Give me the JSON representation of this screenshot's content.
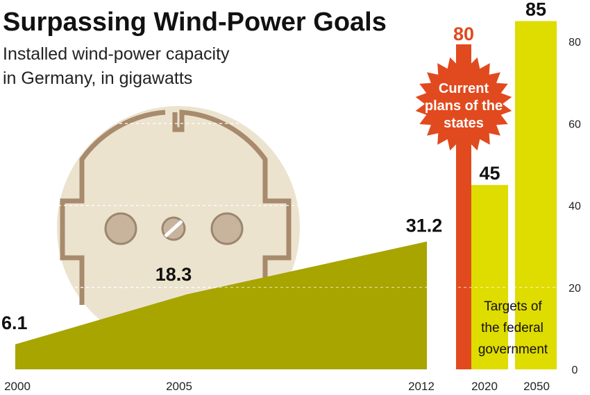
{
  "title": "Surpassing Wind-Power Goals",
  "subtitle_lines": [
    "Installed wind-power capacity",
    "in Germany, in gigawatts"
  ],
  "colors": {
    "area": "#a8a400",
    "state_plans": "#e14a1e",
    "federal_targets": "#dfdc00",
    "socket": "#ece3cf",
    "socket_outline": "#a88a6c",
    "socket_hole": "#c8b49c"
  },
  "icons": [
    "power-socket-icon",
    "starburst-icon"
  ],
  "chart_data": [
    {
      "type": "area",
      "x": [
        2000,
        2005,
        2012
      ],
      "values": [
        6.1,
        18.3,
        31.2
      ],
      "data_labels": [
        "6.1",
        "18.3",
        "31.2"
      ],
      "tick_labels": [
        "2000",
        "2005",
        "2012"
      ],
      "ylim": [
        0,
        85
      ]
    },
    {
      "type": "bar",
      "series": [
        {
          "name": "Current plans of the states",
          "categories": [
            "2020"
          ],
          "values": [
            80
          ],
          "data_labels": [
            "80"
          ]
        },
        {
          "name": "Targets of the federal government",
          "categories": [
            "2020",
            "2050"
          ],
          "values": [
            45,
            85
          ],
          "data_labels": [
            "45",
            "85"
          ]
        }
      ],
      "tick_labels": [
        "2020",
        "2050"
      ],
      "y_ticks": [
        "0",
        "20",
        "40",
        "60",
        "80"
      ],
      "ylim": [
        0,
        85
      ],
      "grid": true,
      "annotations": {
        "state_plans": [
          "Current",
          "plans of the",
          "states"
        ],
        "federal_targets": [
          "Targets of",
          "the federal",
          "government"
        ]
      }
    }
  ]
}
